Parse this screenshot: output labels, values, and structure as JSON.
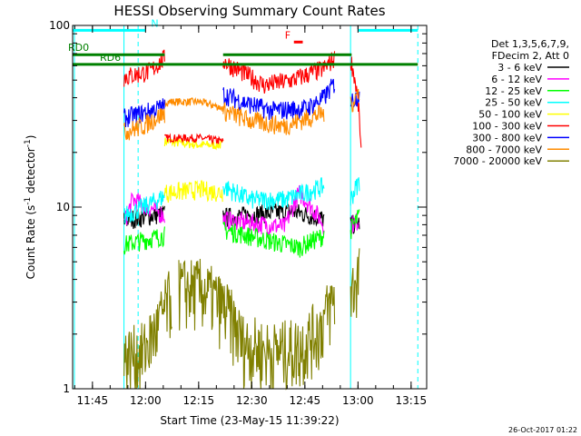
{
  "chart_data": {
    "type": "line",
    "title": "HESSI Observing Summary Count Rates",
    "xlabel": "Start Time (23-May-15 11:39:22)",
    "ylabel_main": "Count Rate (s",
    "ylabel_sup": "-1",
    "ylabel_tail": " detector",
    "ylabel_close": ")",
    "y_scale": "log",
    "ylim": [
      1,
      100
    ],
    "xlim_minutes": [
      0,
      100
    ],
    "x_ticks": [
      {
        "label": "11:45",
        "t": 5.6
      },
      {
        "label": "12:00",
        "t": 20.6
      },
      {
        "label": "12:15",
        "t": 35.6
      },
      {
        "label": "12:30",
        "t": 50.6
      },
      {
        "label": "12:45",
        "t": 65.6
      },
      {
        "label": "13:00",
        "t": 80.6
      },
      {
        "label": "13:15",
        "t": 95.6
      }
    ],
    "y_ticks": [
      {
        "label": "1",
        "v": 1
      },
      {
        "label": "10",
        "v": 10
      },
      {
        "label": "100",
        "v": 100
      }
    ],
    "legend": {
      "placement": "right",
      "header": [
        "Det 1,3,5,6,7,9,",
        "FDecim 2, Att 0"
      ]
    },
    "series": [
      {
        "name": "3 - 6 keV",
        "color": "#000000",
        "segments": [
          [
            [
              14.5,
              8.5
            ],
            [
              26,
              9.2
            ]
          ],
          [
            [
              42.5,
              8.8
            ],
            [
              62,
              9.5
            ],
            [
              71,
              8.6
            ]
          ],
          [
            [
              78.5,
              8.0
            ],
            [
              81,
              8.2
            ]
          ]
        ]
      },
      {
        "name": "6 - 12 keV",
        "color": "#ff00ff",
        "segments": [
          [
            [
              14.5,
              8.0
            ],
            [
              17,
              11.0
            ],
            [
              26,
              9.0
            ]
          ],
          [
            [
              42.5,
              8.5
            ],
            [
              60,
              7.8
            ],
            [
              64,
              12.0
            ],
            [
              71,
              8.0
            ]
          ],
          [
            [
              78.5,
              8.0
            ],
            [
              81,
              8.5
            ]
          ]
        ]
      },
      {
        "name": "12 - 25 keV",
        "color": "#00ff00",
        "segments": [
          [
            [
              14.5,
              6.2
            ],
            [
              26,
              7.0
            ]
          ],
          [
            [
              42.5,
              7.5
            ],
            [
              56,
              6.5
            ],
            [
              64,
              6.0
            ],
            [
              71,
              7.0
            ]
          ],
          [
            [
              78.5,
              7.5
            ],
            [
              81,
              9.0
            ]
          ]
        ]
      },
      {
        "name": "25 - 50 keV",
        "color": "#00ffff",
        "segments": [
          [
            [
              14.5,
              9.0
            ],
            [
              20,
              10.0
            ],
            [
              26,
              11.5
            ]
          ],
          [
            [
              42.5,
              13.0
            ],
            [
              50,
              11.0
            ],
            [
              60,
              11.0
            ],
            [
              71,
              13.0
            ]
          ],
          [
            [
              78.5,
              11.0
            ],
            [
              81,
              14.0
            ]
          ]
        ]
      },
      {
        "name": "50 - 100 keV",
        "color": "#ffff00",
        "segments": [
          [
            [
              26,
              12.0
            ],
            [
              36,
              12.5
            ],
            [
              42.5,
              12.0
            ]
          ]
        ]
      },
      {
        "name": "100 - 300 keV",
        "color": "#ff0000",
        "segments": [
          [
            [
              14.5,
              52
            ],
            [
              22,
              56
            ],
            [
              26,
              66
            ]
          ],
          [
            [
              42.5,
              64
            ],
            [
              46,
              58
            ],
            [
              54,
              47
            ],
            [
              62,
              50
            ],
            [
              71,
              58
            ],
            [
              74,
              66
            ]
          ],
          [
            [
              78.5,
              66
            ],
            [
              80.5,
              40
            ],
            [
              81.5,
              20
            ]
          ]
        ]
      },
      {
        "name": "300 - 800 keV",
        "color": "#0000ff",
        "segments": [
          [
            [
              14.5,
              31
            ],
            [
              20,
              33
            ],
            [
              26,
              36
            ]
          ],
          [
            [
              42.5,
              42
            ],
            [
              48,
              38
            ],
            [
              56,
              34
            ],
            [
              66,
              35
            ],
            [
              71,
              40
            ],
            [
              74,
              48
            ]
          ],
          [
            [
              78.5,
              38
            ],
            [
              81,
              42
            ]
          ]
        ]
      },
      {
        "name": "800 - 7000 keV",
        "color": "#ff8c00",
        "segments": [
          [
            [
              14.5,
              26
            ],
            [
              20,
              28
            ],
            [
              26,
              33
            ]
          ],
          [
            [
              42.5,
              34
            ],
            [
              50,
              30
            ],
            [
              60,
              28
            ],
            [
              71,
              33
            ]
          ],
          [
            [
              78.5,
              36
            ],
            [
              81,
              44
            ]
          ]
        ]
      },
      {
        "name": "7000 - 20000 keV",
        "color": "#808000",
        "segments": [
          [
            [
              14.5,
              1.5
            ],
            [
              20,
              1.6
            ],
            [
              24,
              2.2
            ],
            [
              28,
              3.3
            ]
          ],
          [
            [
              30,
              3.6
            ],
            [
              36,
              3.6
            ],
            [
              40,
              3.2
            ],
            [
              44,
              2.6
            ],
            [
              48,
              1.8
            ],
            [
              56,
              1.6
            ],
            [
              64,
              1.7
            ],
            [
              70,
              2.2
            ],
            [
              74,
              3.2
            ]
          ],
          [
            [
              78.5,
              3.3
            ],
            [
              81,
              4.5
            ]
          ]
        ]
      }
    ],
    "shadow_gray_segments": [
      [
        [
          26,
          23
        ],
        [
          36,
          22
        ],
        [
          42.5,
          22
        ]
      ]
    ],
    "extra_bands": {
      "orange_mid": [
        [
          26,
          38
        ],
        [
          36,
          38
        ],
        [
          42.5,
          35
        ]
      ],
      "red_mid": [
        [
          26,
          24
        ],
        [
          36,
          24
        ],
        [
          42.5,
          23
        ]
      ]
    },
    "flags": [
      {
        "label": "N",
        "color": "#00ffff",
        "level": 94,
        "spans": [
          [
            0,
            20.6
          ],
          [
            80.5,
            97.5
          ]
        ]
      },
      {
        "label": "F",
        "color": "#ff0000",
        "level": 81,
        "spans": [
          [
            62.5,
            65
          ]
        ]
      },
      {
        "label": "RD0",
        "color": "#008000",
        "level": 69,
        "spans": [
          [
            0,
            26
          ],
          [
            42.5,
            78.8
          ]
        ]
      },
      {
        "label": "RD6",
        "color": "#008000",
        "level": 61,
        "spans": [
          [
            0,
            97.5
          ]
        ]
      }
    ],
    "night_markers_cyan_solid": [
      0.5,
      14.5,
      78.5
    ],
    "night_markers_cyan_dashed": [
      18.5,
      97.5
    ]
  },
  "timestamp": "26-Oct-2017 01:22"
}
